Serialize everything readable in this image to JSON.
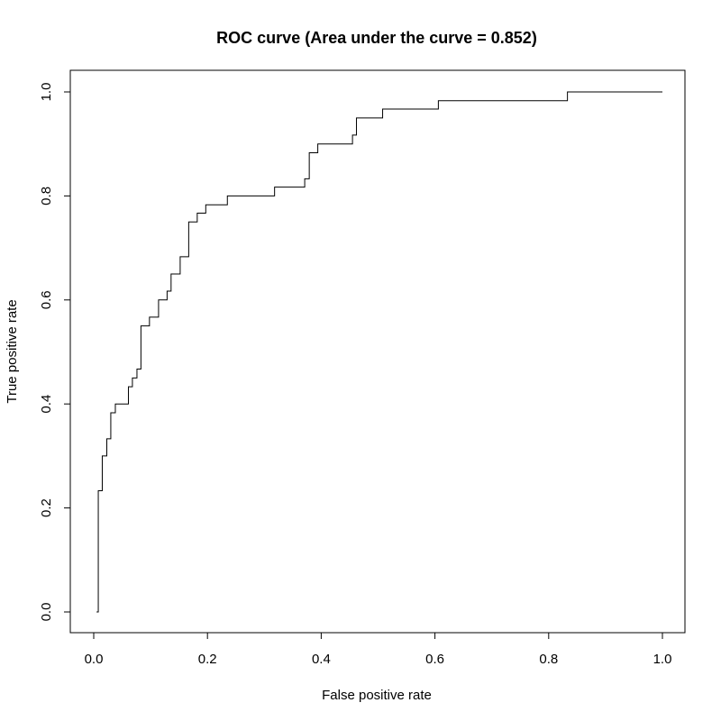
{
  "chart_data": {
    "type": "line",
    "title": "ROC curve (Area under the curve = 0.852)",
    "xlabel": "False positive rate",
    "ylabel": "True positive rate",
    "xlim": [
      0.0,
      1.0
    ],
    "ylim": [
      0.0,
      1.0
    ],
    "x_ticks": [
      0.0,
      0.2,
      0.4,
      0.6,
      0.8,
      1.0
    ],
    "x_tick_labels": [
      "0.0",
      "0.2",
      "0.4",
      "0.6",
      "0.8",
      "1.0"
    ],
    "y_ticks": [
      0.0,
      0.2,
      0.4,
      0.6,
      0.8,
      1.0
    ],
    "y_tick_labels": [
      "0.0",
      "0.2",
      "0.4",
      "0.6",
      "0.8",
      "1.0"
    ],
    "grid": false,
    "legend": "none",
    "line_color": "#000000",
    "series": [
      {
        "x": [
          0.005,
          0.008,
          0.008,
          0.015,
          0.015,
          0.023,
          0.023,
          0.03,
          0.03,
          0.038,
          0.038,
          0.061,
          0.061,
          0.068,
          0.068,
          0.076,
          0.076,
          0.083,
          0.083,
          0.098,
          0.098,
          0.114,
          0.114,
          0.129,
          0.129,
          0.136,
          0.136,
          0.152,
          0.152,
          0.167,
          0.167,
          0.182,
          0.182,
          0.197,
          0.197,
          0.235,
          0.235,
          0.318,
          0.318,
          0.371,
          0.371,
          0.379,
          0.379,
          0.394,
          0.394,
          0.455,
          0.455,
          0.462,
          0.462,
          0.508,
          0.508,
          0.606,
          0.606,
          0.833,
          0.833,
          1.0
        ],
        "y": [
          0.0,
          0.0,
          0.233,
          0.233,
          0.3,
          0.3,
          0.333,
          0.333,
          0.383,
          0.383,
          0.4,
          0.4,
          0.433,
          0.433,
          0.45,
          0.45,
          0.467,
          0.467,
          0.55,
          0.55,
          0.567,
          0.567,
          0.6,
          0.6,
          0.617,
          0.617,
          0.65,
          0.65,
          0.683,
          0.683,
          0.75,
          0.75,
          0.767,
          0.767,
          0.783,
          0.783,
          0.8,
          0.8,
          0.817,
          0.817,
          0.833,
          0.833,
          0.883,
          0.883,
          0.9,
          0.9,
          0.917,
          0.917,
          0.95,
          0.95,
          0.967,
          0.967,
          0.983,
          0.983,
          1.0,
          1.0
        ]
      }
    ]
  }
}
